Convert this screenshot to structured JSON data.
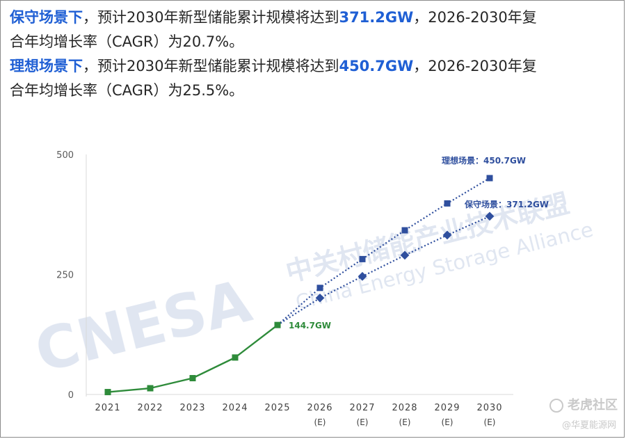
{
  "text": {
    "line1": {
      "scenario": "保守场景下",
      "mid": "，预计2030年新型储能累计规模将达到",
      "value": "371.2GW",
      "tail": "，2026-2030年复",
      "cont": "合年均增长率（CAGR）为20.7%。"
    },
    "line2": {
      "scenario": "理想场景下",
      "mid": "，预计2030年新型储能累计规模将达到",
      "value": "450.7GW",
      "tail": "，2026-2030年复",
      "cont": "合年均增长率（CAGR）为25.5%。"
    }
  },
  "watermark": {
    "brand": "CNESA",
    "cn": "中关村储能产业技术联盟",
    "en": "China Energy Storage Alliance"
  },
  "footer": {
    "brand": "老虎社区",
    "sub": "@华夏能源网"
  },
  "chart_data": {
    "type": "line",
    "categories": [
      "2021",
      "2022",
      "2023",
      "2024",
      "2025",
      "2026",
      "2027",
      "2028",
      "2029",
      "2030"
    ],
    "category_sublabels": [
      "",
      "",
      "",
      "",
      "",
      "(E)",
      "(E)",
      "(E)",
      "(E)",
      "(E)"
    ],
    "ylim": [
      0,
      500
    ],
    "yticks": [
      0,
      250,
      500
    ],
    "grid": false,
    "series": [
      {
        "name": "",
        "color": "#2e8b3a",
        "style": "solid",
        "marker": "square",
        "values": [
          5,
          13,
          34,
          77,
          144.7,
          null,
          null,
          null,
          null,
          null
        ],
        "end_label": "144.7GW"
      },
      {
        "name": "理想场景",
        "color": "#2f4f9e",
        "style": "dotted",
        "marker": "square",
        "values": [
          null,
          null,
          null,
          null,
          144.7,
          222,
          282,
          342,
          398,
          450.7
        ],
        "end_label": "理想场景：450.7GW"
      },
      {
        "name": "保守场景",
        "color": "#2f4f9e",
        "style": "dotted",
        "marker": "diamond",
        "values": [
          null,
          null,
          null,
          null,
          144.7,
          201,
          246,
          290,
          332,
          371.2
        ],
        "end_label": "保守场景：371.2GW"
      }
    ]
  }
}
